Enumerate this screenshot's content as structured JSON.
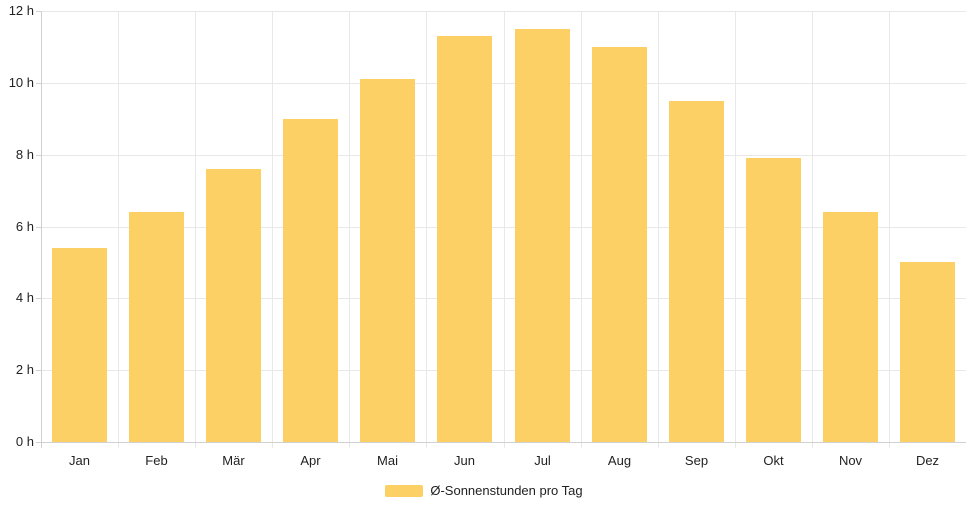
{
  "chart_data": {
    "type": "bar",
    "title": "",
    "categories": [
      "Jan",
      "Feb",
      "Mär",
      "Apr",
      "Mai",
      "Jun",
      "Jul",
      "Aug",
      "Sep",
      "Okt",
      "Nov",
      "Dez"
    ],
    "values": [
      5.4,
      6.4,
      7.6,
      9.0,
      10.1,
      11.3,
      11.5,
      11.0,
      9.5,
      7.9,
      6.4,
      5.0
    ],
    "series_name": "Ø-Sonnenstunden pro Tag",
    "unit": "h",
    "xlabel": "",
    "ylabel": "",
    "ylim": [
      0,
      12
    ],
    "ytick_values": [
      0,
      2,
      4,
      6,
      8,
      10,
      12
    ],
    "ytick_labels": [
      "0 h",
      "2 h",
      "4 h",
      "6 h",
      "8 h",
      "10 h",
      "12 h"
    ],
    "grid": true,
    "legend": {
      "label": "Ø-Sonnenstunden pro Tag",
      "position": "bottom-center"
    },
    "colors": {
      "bar": "#FDD065",
      "grid": "#E8E8E8",
      "axis": "#D0D0D0",
      "text": "#222222"
    }
  }
}
